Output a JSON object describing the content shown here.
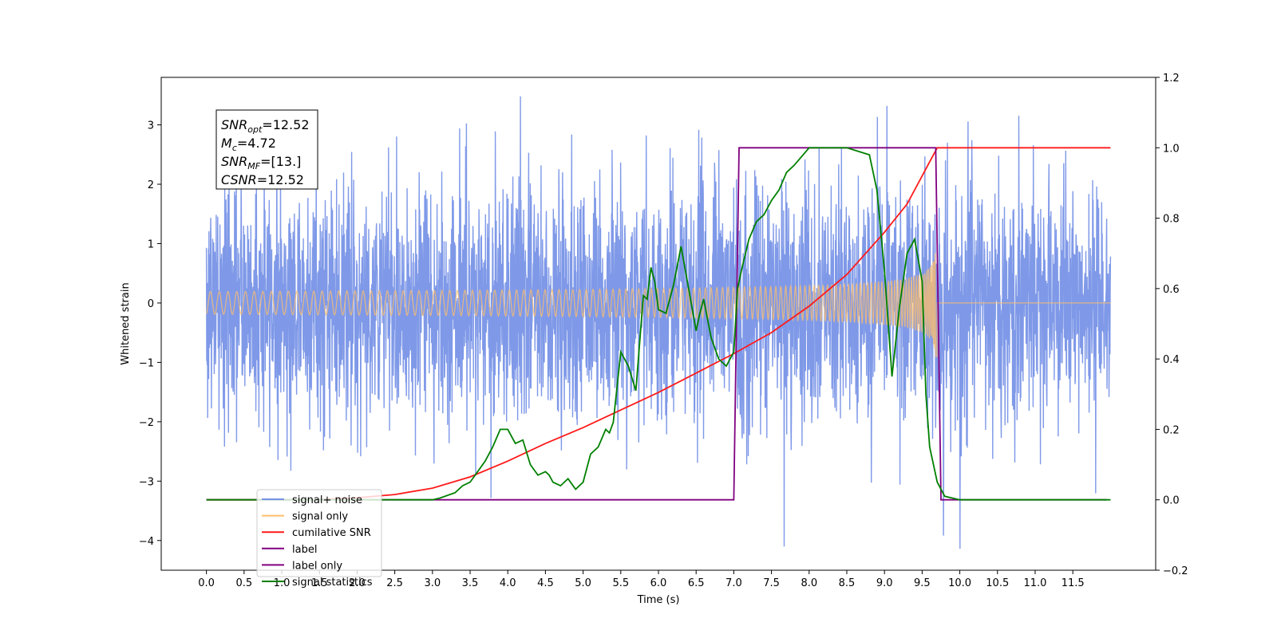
{
  "chart_data": {
    "type": "line",
    "title": "",
    "xlabel": "Time (s)",
    "ylabel": "Whitened strain",
    "xlim": [
      -0.6,
      12.6
    ],
    "ylim": [
      -4.5,
      3.8
    ],
    "y2lim": [
      -0.2,
      1.2
    ],
    "x_ticks": [
      "0.0",
      "0.5",
      "1.0",
      "1.5",
      "2.0",
      "2.5",
      "3.0",
      "3.5",
      "4.0",
      "4.5",
      "5.0",
      "5.5",
      "6.0",
      "6.5",
      "7.0",
      "7.5",
      "8.0",
      "8.5",
      "9.0",
      "9.5",
      "10.0",
      "10.5",
      "11.0",
      "11.5"
    ],
    "y_ticks": [
      "−4",
      "−3",
      "−2",
      "−1",
      "0",
      "1",
      "2",
      "3"
    ],
    "y2_ticks": [
      "−0.2",
      "0.0",
      "0.2",
      "0.4",
      "0.6",
      "0.8",
      "1.0",
      "1.2"
    ],
    "grid": false,
    "legend_position": "lower-left",
    "annotation": {
      "lines": [
        {
          "base": "SNR",
          "sub": "opt",
          "value": "=12.52"
        },
        {
          "base": "M",
          "sub": "c",
          "value": "=4.72"
        },
        {
          "base": "SNR",
          "sub": "MF",
          "value": "=[13.]"
        },
        {
          "base": "CSNR",
          "sub": "",
          "value": "=12.52"
        }
      ]
    },
    "series": [
      {
        "name": "signal+ noise",
        "color": "#7893e7",
        "axis": "left",
        "kind": "noise",
        "x_range": [
          0.0,
          12.0
        ],
        "std": 1.0,
        "max": 3.48,
        "min": -4.1
      },
      {
        "name": "signal only",
        "color": "#ffbf69",
        "axis": "left",
        "kind": "chirp",
        "x_range": [
          0.0,
          12.0
        ],
        "merger_time": 9.7,
        "peak_amplitude": 0.9
      },
      {
        "name": "cumilative SNR",
        "color": "#ff1a1a",
        "axis": "right",
        "x": [
          0.0,
          0.5,
          1.0,
          1.5,
          2.0,
          2.5,
          3.0,
          3.5,
          4.0,
          4.5,
          5.0,
          5.5,
          6.0,
          6.5,
          7.0,
          7.5,
          8.0,
          8.5,
          9.0,
          9.3,
          9.5,
          9.6,
          9.7,
          9.75,
          10.0,
          11.0,
          12.0
        ],
        "y": [
          0.0,
          0.0,
          0.0,
          0.001,
          0.006,
          0.015,
          0.033,
          0.065,
          0.11,
          0.16,
          0.205,
          0.255,
          0.305,
          0.36,
          0.415,
          0.475,
          0.55,
          0.64,
          0.76,
          0.84,
          0.92,
          0.96,
          1.0,
          1.0,
          1.0,
          1.0,
          1.0
        ]
      },
      {
        "name": "label",
        "color": "#800080",
        "axis": "right",
        "x": [
          0.0,
          7.0,
          7.07,
          9.68,
          9.75,
          11.95
        ],
        "y": [
          0.0,
          0.0,
          1.0,
          1.0,
          0.0,
          0.0
        ]
      },
      {
        "name": "label only",
        "color": "#800080",
        "axis": "right",
        "x": [],
        "y": []
      },
      {
        "name": "signal statistics",
        "color": "#008000",
        "axis": "right",
        "x": [
          0.0,
          2.5,
          3.0,
          3.1,
          3.3,
          3.4,
          3.5,
          3.6,
          3.7,
          3.8,
          3.9,
          4.0,
          4.1,
          4.2,
          4.3,
          4.4,
          4.5,
          4.55,
          4.6,
          4.7,
          4.8,
          4.9,
          5.0,
          5.05,
          5.1,
          5.2,
          5.3,
          5.35,
          5.4,
          5.5,
          5.6,
          5.7,
          5.8,
          5.85,
          5.9,
          5.95,
          6.0,
          6.1,
          6.2,
          6.3,
          6.4,
          6.5,
          6.55,
          6.6,
          6.7,
          6.8,
          6.9,
          7.0,
          7.05,
          7.1,
          7.2,
          7.3,
          7.4,
          7.5,
          7.6,
          7.7,
          7.8,
          8.0,
          8.2,
          8.5,
          8.8,
          8.9,
          9.0,
          9.1,
          9.2,
          9.3,
          9.4,
          9.45,
          9.5,
          9.55,
          9.6,
          9.7,
          9.8,
          10.0,
          12.0
        ],
        "y": [
          0.0,
          0.0,
          0.0,
          0.005,
          0.02,
          0.04,
          0.05,
          0.08,
          0.11,
          0.15,
          0.2,
          0.2,
          0.16,
          0.17,
          0.1,
          0.07,
          0.08,
          0.07,
          0.05,
          0.04,
          0.06,
          0.03,
          0.05,
          0.09,
          0.13,
          0.15,
          0.2,
          0.19,
          0.22,
          0.42,
          0.38,
          0.31,
          0.58,
          0.57,
          0.66,
          0.62,
          0.54,
          0.53,
          0.61,
          0.72,
          0.6,
          0.48,
          0.53,
          0.57,
          0.46,
          0.4,
          0.38,
          0.42,
          0.6,
          0.65,
          0.74,
          0.79,
          0.81,
          0.85,
          0.88,
          0.93,
          0.95,
          1.0,
          1.0,
          1.0,
          0.98,
          0.88,
          0.65,
          0.35,
          0.55,
          0.7,
          0.74,
          0.68,
          0.62,
          0.3,
          0.15,
          0.05,
          0.01,
          0.0,
          0.0
        ]
      }
    ]
  }
}
